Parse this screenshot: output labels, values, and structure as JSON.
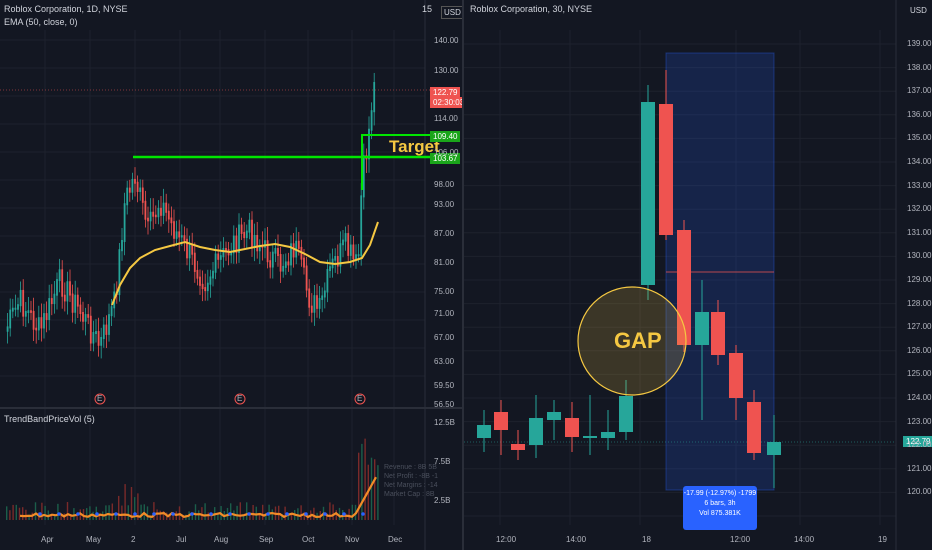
{
  "left_chart": {
    "title": "Roblox Corporation, 1D, NYSE",
    "indicator": "EMA (50, close, 0)",
    "currency": "USD",
    "price_axis": [
      "140.00",
      "130.00",
      "114.00",
      "106.00",
      "98.00",
      "93.00",
      "87.00",
      "81.00",
      "75.00",
      "71.00",
      "67.00",
      "63.00",
      "59.50",
      "56.50"
    ],
    "time_axis": [
      "Apr",
      "May",
      "2",
      "Jul",
      "Aug",
      "Sep",
      "Oct",
      "Nov",
      "Dec"
    ],
    "last_price": "122.79",
    "countdown": "02:30:03",
    "level_upper": "109.40",
    "level_lower": "103.67",
    "target_label": "Target",
    "earnings_marker": "E",
    "sub_indicator": "TrendBandPriceVol (5)",
    "sub_axis": [
      "12.5B",
      "7.5B",
      "2.5B"
    ],
    "sub_ghost": [
      "Revenue : 8B 5B",
      "Net Profit : -8B -1",
      "Net Margins : -14",
      "Market Cap : 8B"
    ],
    "corner_label": "15"
  },
  "right_chart": {
    "title": "Roblox Corporation, 30, NYSE",
    "currency": "USD",
    "price_axis": [
      "139.00",
      "138.00",
      "137.00",
      "136.00",
      "135.00",
      "134.00",
      "133.00",
      "132.00",
      "131.00",
      "130.00",
      "129.00",
      "128.00",
      "127.00",
      "126.00",
      "125.00",
      "124.00",
      "123.00",
      "122.00",
      "121.00",
      "120.00"
    ],
    "time_axis": [
      "12:00",
      "14:00",
      "18",
      "12:00",
      "14:00",
      "19"
    ],
    "last_price": "122.79",
    "gap_label": "GAP",
    "measure_line1": "-17.99 (-12.97%) -1799",
    "measure_line2": "6 bars, 3h",
    "measure_line3": "Vol 875.381K"
  },
  "colors": {
    "up": "#26a69a",
    "down": "#ef5350",
    "ema": "#f5c842",
    "level": "#00e600",
    "bg": "#131722"
  }
}
